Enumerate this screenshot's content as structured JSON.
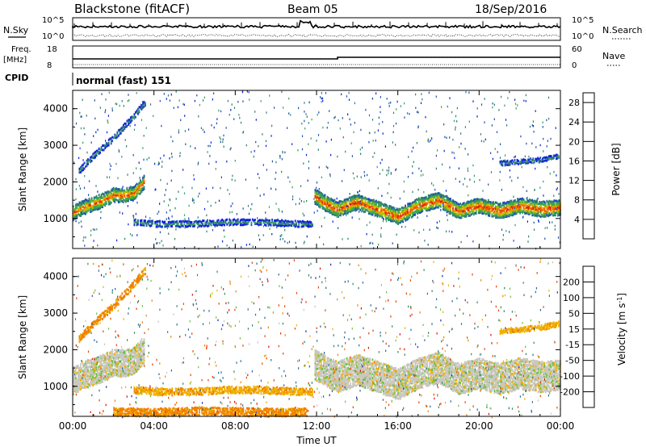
{
  "header": {
    "station": "Blackstone (fitACF)",
    "beam": "Beam 05",
    "date": "18/Sep/2016"
  },
  "strip": {
    "nsky_label": "N.Sky",
    "nsky_tick_hi": "10^5",
    "nsky_tick_lo": "10^0",
    "nsearch_label": "N.Search",
    "freq_label": "Freq.",
    "freq_unit": "[MHz]",
    "freq_tick_hi": "18",
    "freq_tick_lo": "8",
    "nave_tick_hi": "60",
    "nave_tick_lo": "0",
    "nave_label": "Nave",
    "cpid_label": "CPID",
    "cpid_value": "normal (fast) 151"
  },
  "colors": {
    "power": [
      "#1020e0",
      "#2050b0",
      "#308070",
      "#3aa060",
      "#40b040",
      "#b8c000",
      "#f0a000",
      "#f06000",
      "#e02000"
    ],
    "velocity": [
      "#1a2fb5",
      "#2a6a9a",
      "#2e8a60",
      "#6cc040",
      "#c8c8c0",
      "#f0b000",
      "#f08000",
      "#e84000",
      "#e01010"
    ]
  },
  "chart_data": [
    {
      "type": "heatmap",
      "name": "power",
      "ylabel": "Slant Range [km]",
      "xlim": [
        0,
        24
      ],
      "ylim": [
        180,
        4500
      ],
      "yticks": [
        "1000",
        "2000",
        "3000",
        "4000"
      ],
      "colorbar_label": "Power [dB]",
      "colorbar_ticks": [
        "4",
        "8",
        "12",
        "16",
        "20",
        "24",
        "28"
      ],
      "colorbar_range": [
        0,
        30
      ],
      "echo_bands": [
        {
          "t": [
            0.0,
            0.5,
            1.0,
            1.5,
            2.0,
            2.5,
            3.0,
            3.5
          ],
          "r": [
            1150,
            1300,
            1400,
            1500,
            1650,
            1620,
            1700,
            2000
          ],
          "width": 350,
          "peak": 26
        },
        {
          "t": [
            11.9,
            12.3,
            13.0,
            14.0,
            15.0,
            16.0,
            17.0,
            18.0,
            19.0,
            20.0,
            21.0,
            22.0,
            23.0,
            24.0
          ],
          "r": [
            1600,
            1450,
            1250,
            1450,
            1250,
            1050,
            1350,
            1500,
            1200,
            1350,
            1200,
            1350,
            1250,
            1300
          ],
          "width": 380,
          "peak": 28
        },
        {
          "t": [
            3.0,
            4.0,
            5.0,
            6.0,
            7.0,
            8.0,
            9.0,
            10.0,
            11.0,
            11.8
          ],
          "r": [
            900,
            850,
            850,
            850,
            880,
            900,
            900,
            880,
            850,
            850
          ],
          "width": 120,
          "peak": 10
        },
        {
          "t": [
            0.3,
            1.0,
            2.0,
            3.0,
            3.6
          ],
          "r": [
            2300,
            2700,
            3200,
            3800,
            4200
          ],
          "width": 120,
          "peak": 10
        },
        {
          "t": [
            21.0,
            22.0,
            23.0,
            23.9
          ],
          "r": [
            2500,
            2550,
            2600,
            2700
          ],
          "width": 80,
          "peak": 10
        }
      ]
    },
    {
      "type": "heatmap",
      "name": "velocity",
      "xlabel": "Time UT",
      "ylabel": "Slant Range [km]",
      "xlim": [
        0,
        24
      ],
      "ylim": [
        180,
        4500
      ],
      "xticks": [
        "00:00",
        "04:00",
        "08:00",
        "12:00",
        "16:00",
        "20:00",
        "00:00"
      ],
      "yticks": [
        "1000",
        "2000",
        "3000",
        "4000"
      ],
      "colorbar_label": "Velocity [m s^-1]",
      "colorbar_ticks": [
        "200",
        "100",
        "50",
        "15",
        "-15",
        "-50",
        "-100",
        "-200"
      ],
      "colorbar_range": [
        -250,
        250
      ],
      "echo_bands": [
        {
          "t": [
            0.0,
            0.5,
            1.0,
            1.5,
            2.0,
            2.5,
            3.0,
            3.5
          ],
          "r": [
            1150,
            1300,
            1400,
            1500,
            1650,
            1620,
            1700,
            2000
          ],
          "width": 700,
          "v": 0
        },
        {
          "t": [
            11.9,
            12.3,
            13.0,
            14.0,
            15.0,
            16.0,
            17.0,
            18.0,
            19.0,
            20.0,
            21.0,
            22.0,
            23.0,
            24.0
          ],
          "r": [
            1600,
            1450,
            1250,
            1450,
            1250,
            1050,
            1350,
            1500,
            1200,
            1350,
            1200,
            1350,
            1250,
            1300
          ],
          "width": 800,
          "v": 0
        },
        {
          "t": [
            3.0,
            4.0,
            5.0,
            6.0,
            7.0,
            8.0,
            9.0,
            10.0,
            11.0,
            11.8
          ],
          "r": [
            900,
            850,
            850,
            850,
            880,
            900,
            900,
            880,
            850,
            850
          ],
          "width": 150,
          "v": -40
        },
        {
          "t": [
            0.3,
            1.0,
            2.0,
            3.0,
            3.6
          ],
          "r": [
            2300,
            2700,
            3200,
            3800,
            4200
          ],
          "width": 150,
          "v": -60
        },
        {
          "t": [
            21.0,
            22.0,
            23.0,
            23.9
          ],
          "r": [
            2500,
            2550,
            2600,
            2700
          ],
          "width": 100,
          "v": -40
        },
        {
          "t": [
            2.0,
            4.0,
            6.0,
            8.0,
            10.0,
            11.5
          ],
          "r": [
            300,
            280,
            320,
            300,
            280,
            300
          ],
          "width": 180,
          "v": -60
        }
      ]
    }
  ]
}
